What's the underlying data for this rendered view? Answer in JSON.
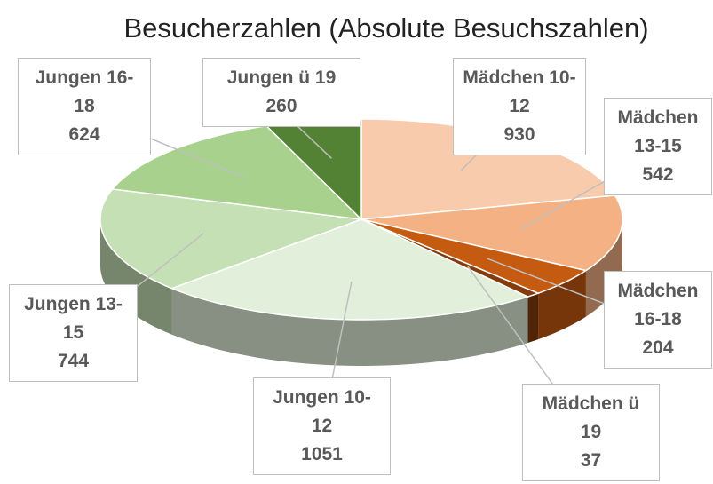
{
  "chart_data": {
    "type": "pie3d",
    "title": "Besucherzahlen (Absolute Besuchszahlen)",
    "categories": [
      "Mädchen 10-12",
      "Mädchen 13-15",
      "Mädchen 16-18",
      "Mädchen ü 19",
      "Jungen 10-12",
      "Jungen 13-15",
      "Jungen 16-18",
      "Jungen ü 19"
    ],
    "values": [
      930,
      542,
      204,
      37,
      1051,
      744,
      624,
      260
    ],
    "colors": [
      "#f8cbad",
      "#f4b183",
      "#c55a11",
      "#843c0c",
      "#e2efda",
      "#c5e0b4",
      "#a9d18e",
      "#548235"
    ]
  }
}
